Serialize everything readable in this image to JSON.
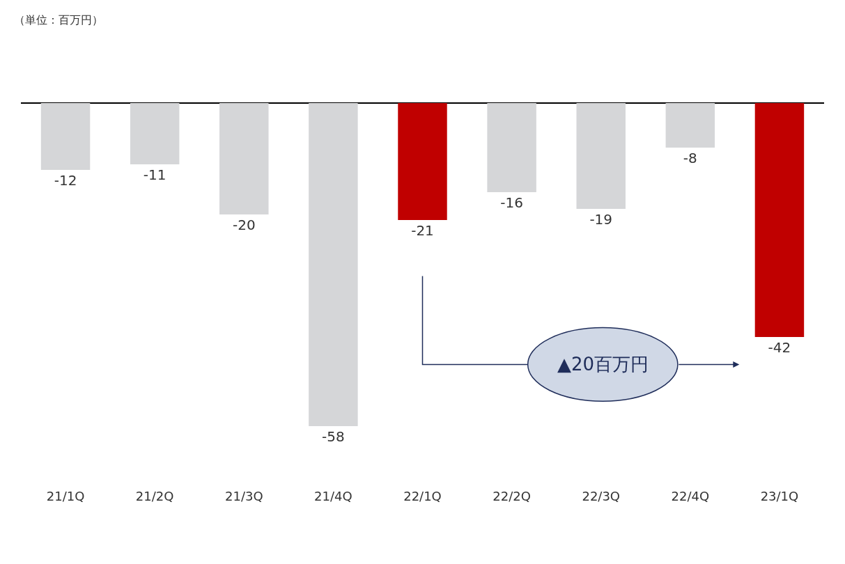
{
  "chart_data": {
    "type": "bar",
    "categories": [
      "21/1Q",
      "21/2Q",
      "21/3Q",
      "21/4Q",
      "22/1Q",
      "22/2Q",
      "22/3Q",
      "22/4Q",
      "23/1Q"
    ],
    "values": [
      -12,
      -11,
      -20,
      -58,
      -21,
      -16,
      -19,
      -8,
      -42
    ],
    "colors": [
      "#d5d6d8",
      "#d5d6d8",
      "#d5d6d8",
      "#d5d6d8",
      "#c00000",
      "#d5d6d8",
      "#d5d6d8",
      "#d5d6d8",
      "#c00000"
    ],
    "data_labels": true,
    "legend": false,
    "annotations": [
      "（単位：百万円）",
      "▲20百万円"
    ]
  }
}
